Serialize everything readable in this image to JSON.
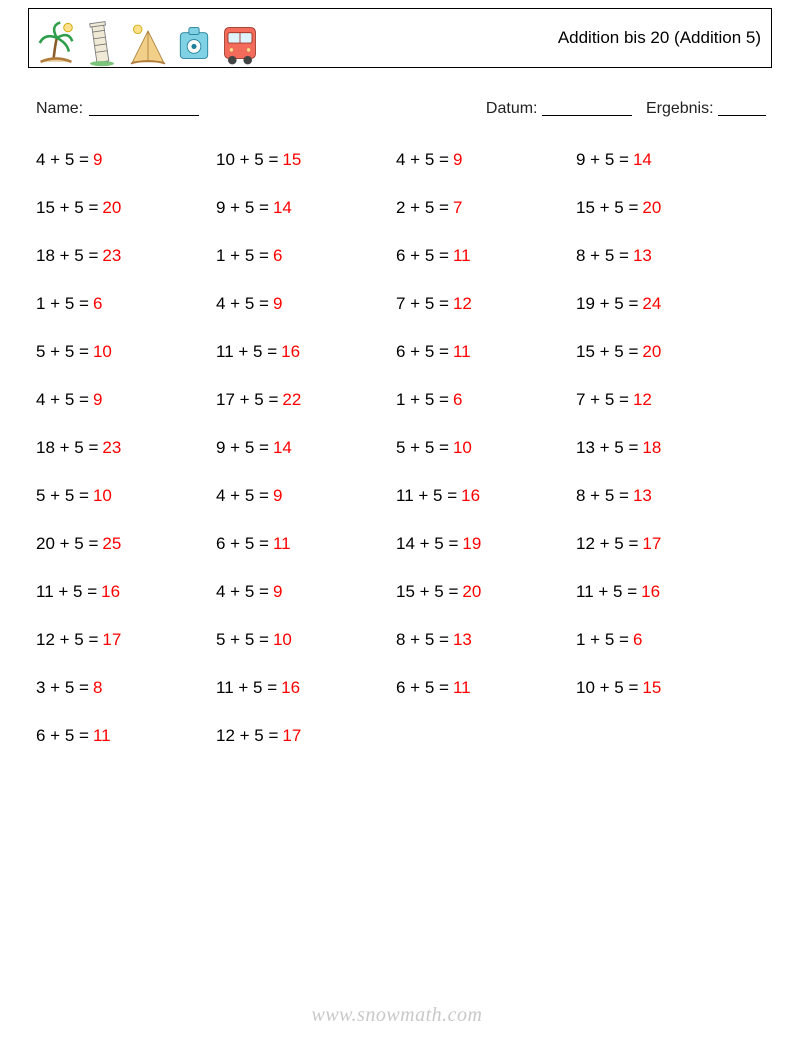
{
  "header": {
    "title": "Addition bis 20 (Addition 5)"
  },
  "meta": {
    "name_label": "Name:",
    "date_label": "Datum:",
    "result_label": "Ergebnis:"
  },
  "answer_color": "#ff0000",
  "problems": [
    {
      "a": 4,
      "b": 5,
      "ans": 9
    },
    {
      "a": 10,
      "b": 5,
      "ans": 15
    },
    {
      "a": 4,
      "b": 5,
      "ans": 9
    },
    {
      "a": 9,
      "b": 5,
      "ans": 14
    },
    {
      "a": 15,
      "b": 5,
      "ans": 20
    },
    {
      "a": 9,
      "b": 5,
      "ans": 14
    },
    {
      "a": 2,
      "b": 5,
      "ans": 7
    },
    {
      "a": 15,
      "b": 5,
      "ans": 20
    },
    {
      "a": 18,
      "b": 5,
      "ans": 23
    },
    {
      "a": 1,
      "b": 5,
      "ans": 6
    },
    {
      "a": 6,
      "b": 5,
      "ans": 11
    },
    {
      "a": 8,
      "b": 5,
      "ans": 13
    },
    {
      "a": 1,
      "b": 5,
      "ans": 6
    },
    {
      "a": 4,
      "b": 5,
      "ans": 9
    },
    {
      "a": 7,
      "b": 5,
      "ans": 12
    },
    {
      "a": 19,
      "b": 5,
      "ans": 24
    },
    {
      "a": 5,
      "b": 5,
      "ans": 10
    },
    {
      "a": 11,
      "b": 5,
      "ans": 16
    },
    {
      "a": 6,
      "b": 5,
      "ans": 11
    },
    {
      "a": 15,
      "b": 5,
      "ans": 20
    },
    {
      "a": 4,
      "b": 5,
      "ans": 9
    },
    {
      "a": 17,
      "b": 5,
      "ans": 22
    },
    {
      "a": 1,
      "b": 5,
      "ans": 6
    },
    {
      "a": 7,
      "b": 5,
      "ans": 12
    },
    {
      "a": 18,
      "b": 5,
      "ans": 23
    },
    {
      "a": 9,
      "b": 5,
      "ans": 14
    },
    {
      "a": 5,
      "b": 5,
      "ans": 10
    },
    {
      "a": 13,
      "b": 5,
      "ans": 18
    },
    {
      "a": 5,
      "b": 5,
      "ans": 10
    },
    {
      "a": 4,
      "b": 5,
      "ans": 9
    },
    {
      "a": 11,
      "b": 5,
      "ans": 16
    },
    {
      "a": 8,
      "b": 5,
      "ans": 13
    },
    {
      "a": 20,
      "b": 5,
      "ans": 25
    },
    {
      "a": 6,
      "b": 5,
      "ans": 11
    },
    {
      "a": 14,
      "b": 5,
      "ans": 19
    },
    {
      "a": 12,
      "b": 5,
      "ans": 17
    },
    {
      "a": 11,
      "b": 5,
      "ans": 16
    },
    {
      "a": 4,
      "b": 5,
      "ans": 9
    },
    {
      "a": 15,
      "b": 5,
      "ans": 20
    },
    {
      "a": 11,
      "b": 5,
      "ans": 16
    },
    {
      "a": 12,
      "b": 5,
      "ans": 17
    },
    {
      "a": 5,
      "b": 5,
      "ans": 10
    },
    {
      "a": 8,
      "b": 5,
      "ans": 13
    },
    {
      "a": 1,
      "b": 5,
      "ans": 6
    },
    {
      "a": 3,
      "b": 5,
      "ans": 8
    },
    {
      "a": 11,
      "b": 5,
      "ans": 16
    },
    {
      "a": 6,
      "b": 5,
      "ans": 11
    },
    {
      "a": 10,
      "b": 5,
      "ans": 15
    },
    {
      "a": 6,
      "b": 5,
      "ans": 11
    },
    {
      "a": 12,
      "b": 5,
      "ans": 17
    }
  ],
  "footer": {
    "text": "www.snowmath.com"
  }
}
